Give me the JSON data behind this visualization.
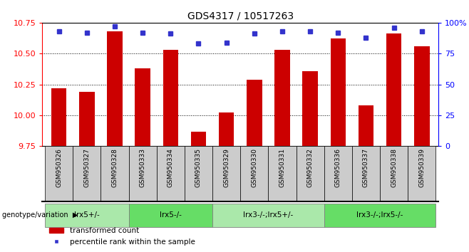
{
  "title": "GDS4317 / 10517263",
  "samples": [
    "GSM950326",
    "GSM950327",
    "GSM950328",
    "GSM950333",
    "GSM950334",
    "GSM950335",
    "GSM950329",
    "GSM950330",
    "GSM950331",
    "GSM950332",
    "GSM950336",
    "GSM950337",
    "GSM950338",
    "GSM950339"
  ],
  "bar_values": [
    10.22,
    10.19,
    10.68,
    10.38,
    10.53,
    9.87,
    10.02,
    10.29,
    10.53,
    10.36,
    10.62,
    10.08,
    10.66,
    10.56
  ],
  "percentile_values": [
    93,
    92,
    97,
    92,
    91,
    83,
    84,
    91,
    93,
    93,
    92,
    88,
    96,
    93
  ],
  "bar_color": "#cc0000",
  "marker_color": "#3333cc",
  "ylim_left": [
    9.75,
    10.75
  ],
  "ylim_right": [
    0,
    100
  ],
  "yticks_left": [
    9.75,
    10.0,
    10.25,
    10.5,
    10.75
  ],
  "yticks_right": [
    0,
    25,
    50,
    75,
    100
  ],
  "ytick_labels_right": [
    "0",
    "25",
    "50",
    "75",
    "100%"
  ],
  "groups": [
    {
      "label": "lrx5+/-",
      "start": 0,
      "end": 2,
      "color": "#aae8aa"
    },
    {
      "label": "lrx5-/-",
      "start": 3,
      "end": 5,
      "color": "#66dd66"
    },
    {
      "label": "lrx3-/-;lrx5+/-",
      "start": 6,
      "end": 9,
      "color": "#aae8aa"
    },
    {
      "label": "lrx3-/-;lrx5-/-",
      "start": 10,
      "end": 13,
      "color": "#66dd66"
    }
  ],
  "genotype_label": "genotype/variation",
  "legend_bar_label": "transformed count",
  "legend_marker_label": "percentile rank within the sample",
  "bar_width": 0.55,
  "sample_box_color": "#cccccc",
  "background_color": "#ffffff"
}
